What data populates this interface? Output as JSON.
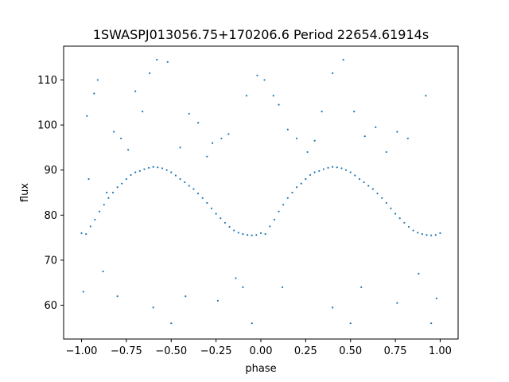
{
  "chart_data": {
    "type": "scatter",
    "title": "1SWASPJ013056.75+170206.6 Period 22654.61914s",
    "xlabel": "phase",
    "ylabel": "flux",
    "xlim": [
      -1.1,
      1.1
    ],
    "ylim": [
      52.5,
      117.5
    ],
    "x_ticks": [
      -1.0,
      -0.75,
      -0.5,
      -0.25,
      0.0,
      0.25,
      0.5,
      0.75,
      1.0
    ],
    "x_tick_labels": [
      "−1.00",
      "−0.75",
      "−0.50",
      "−0.25",
      "0.00",
      "0.25",
      "0.50",
      "0.75",
      "1.00"
    ],
    "y_ticks": [
      60,
      70,
      80,
      90,
      100,
      110
    ],
    "y_tick_labels": [
      "60",
      "70",
      "80",
      "90",
      "100",
      "110"
    ],
    "grid": false,
    "legend": "none",
    "series_color": "#1f77b4",
    "points": [
      [
        -1.0,
        76.0
      ],
      [
        -0.975,
        75.8
      ],
      [
        -0.95,
        77.5
      ],
      [
        -0.925,
        79.0
      ],
      [
        -0.9,
        80.8
      ],
      [
        -0.875,
        82.3
      ],
      [
        -0.85,
        83.8
      ],
      [
        -0.825,
        85.0
      ],
      [
        -0.8,
        86.2
      ],
      [
        -0.775,
        87.0
      ],
      [
        -0.75,
        88.0
      ],
      [
        -0.725,
        88.9
      ],
      [
        -0.7,
        89.5
      ],
      [
        -0.675,
        89.8
      ],
      [
        -0.65,
        90.2
      ],
      [
        -0.625,
        90.5
      ],
      [
        -0.6,
        90.7
      ],
      [
        -0.575,
        90.6
      ],
      [
        -0.55,
        90.4
      ],
      [
        -0.525,
        90.0
      ],
      [
        -0.5,
        89.5
      ],
      [
        -0.475,
        88.8
      ],
      [
        -0.45,
        88.0
      ],
      [
        -0.425,
        87.3
      ],
      [
        -0.4,
        86.5
      ],
      [
        -0.375,
        85.8
      ],
      [
        -0.35,
        84.8
      ],
      [
        -0.325,
        83.8
      ],
      [
        -0.3,
        82.7
      ],
      [
        -0.275,
        81.5
      ],
      [
        -0.25,
        80.3
      ],
      [
        -0.225,
        79.3
      ],
      [
        -0.2,
        78.3
      ],
      [
        -0.175,
        77.4
      ],
      [
        -0.15,
        76.6
      ],
      [
        -0.125,
        76.1
      ],
      [
        -0.1,
        75.8
      ],
      [
        -0.075,
        75.6
      ],
      [
        -0.05,
        75.5
      ],
      [
        -0.025,
        75.6
      ],
      [
        0.0,
        76.0
      ],
      [
        0.025,
        75.8
      ],
      [
        0.05,
        77.5
      ],
      [
        0.075,
        79.0
      ],
      [
        0.1,
        80.8
      ],
      [
        0.125,
        82.3
      ],
      [
        0.15,
        83.8
      ],
      [
        0.175,
        85.0
      ],
      [
        0.2,
        86.2
      ],
      [
        0.225,
        87.0
      ],
      [
        0.25,
        88.0
      ],
      [
        0.275,
        88.9
      ],
      [
        0.3,
        89.5
      ],
      [
        0.325,
        89.8
      ],
      [
        0.35,
        90.2
      ],
      [
        0.375,
        90.5
      ],
      [
        0.4,
        90.7
      ],
      [
        0.425,
        90.6
      ],
      [
        0.45,
        90.4
      ],
      [
        0.475,
        90.0
      ],
      [
        0.5,
        89.5
      ],
      [
        0.525,
        88.8
      ],
      [
        0.55,
        88.0
      ],
      [
        0.575,
        87.3
      ],
      [
        0.6,
        86.5
      ],
      [
        0.625,
        85.8
      ],
      [
        0.65,
        84.8
      ],
      [
        0.675,
        83.8
      ],
      [
        0.7,
        82.7
      ],
      [
        0.725,
        81.5
      ],
      [
        0.75,
        80.3
      ],
      [
        0.775,
        79.3
      ],
      [
        0.8,
        78.3
      ],
      [
        0.825,
        77.4
      ],
      [
        0.85,
        76.6
      ],
      [
        0.875,
        76.1
      ],
      [
        0.9,
        75.8
      ],
      [
        0.925,
        75.6
      ],
      [
        0.95,
        75.5
      ],
      [
        0.975,
        75.6
      ],
      [
        1.0,
        76.0
      ],
      [
        -0.96,
        88.0
      ],
      [
        -0.97,
        102.0
      ],
      [
        -0.93,
        107.0
      ],
      [
        -0.91,
        110.0
      ],
      [
        -0.86,
        85.0
      ],
      [
        -0.82,
        98.5
      ],
      [
        -0.78,
        97.0
      ],
      [
        -0.74,
        94.5
      ],
      [
        -0.7,
        107.5
      ],
      [
        -0.66,
        103.0
      ],
      [
        -0.62,
        111.5
      ],
      [
        -0.58,
        114.5
      ],
      [
        -0.52,
        114.0
      ],
      [
        -0.45,
        95.0
      ],
      [
        -0.4,
        102.5
      ],
      [
        -0.35,
        100.5
      ],
      [
        -0.3,
        93.0
      ],
      [
        -0.27,
        96.0
      ],
      [
        -0.22,
        97.0
      ],
      [
        -0.18,
        98.0
      ],
      [
        -0.14,
        66.0
      ],
      [
        -0.1,
        64.0
      ],
      [
        -0.08,
        106.5
      ],
      [
        -0.05,
        56.0
      ],
      [
        -0.02,
        111.0
      ],
      [
        0.02,
        110.0
      ],
      [
        0.07,
        106.5
      ],
      [
        0.1,
        104.5
      ],
      [
        0.15,
        99.0
      ],
      [
        0.2,
        97.0
      ],
      [
        0.26,
        94.0
      ],
      [
        0.3,
        96.5
      ],
      [
        0.34,
        103.0
      ],
      [
        0.4,
        111.5
      ],
      [
        0.46,
        114.5
      ],
      [
        0.52,
        103.0
      ],
      [
        0.58,
        97.5
      ],
      [
        0.64,
        99.5
      ],
      [
        0.7,
        94.0
      ],
      [
        0.76,
        98.5
      ],
      [
        0.82,
        97.0
      ],
      [
        0.88,
        67.0
      ],
      [
        0.92,
        106.5
      ],
      [
        0.95,
        56.0
      ],
      [
        0.98,
        61.5
      ],
      [
        -0.99,
        63.0
      ],
      [
        -0.88,
        67.5
      ],
      [
        -0.8,
        62.0
      ],
      [
        -0.6,
        59.5
      ],
      [
        -0.5,
        56.0
      ],
      [
        -0.42,
        62.0
      ],
      [
        -0.24,
        61.0
      ],
      [
        0.12,
        64.0
      ],
      [
        0.4,
        59.5
      ],
      [
        0.5,
        56.0
      ],
      [
        0.56,
        64.0
      ],
      [
        0.76,
        60.5
      ]
    ]
  }
}
